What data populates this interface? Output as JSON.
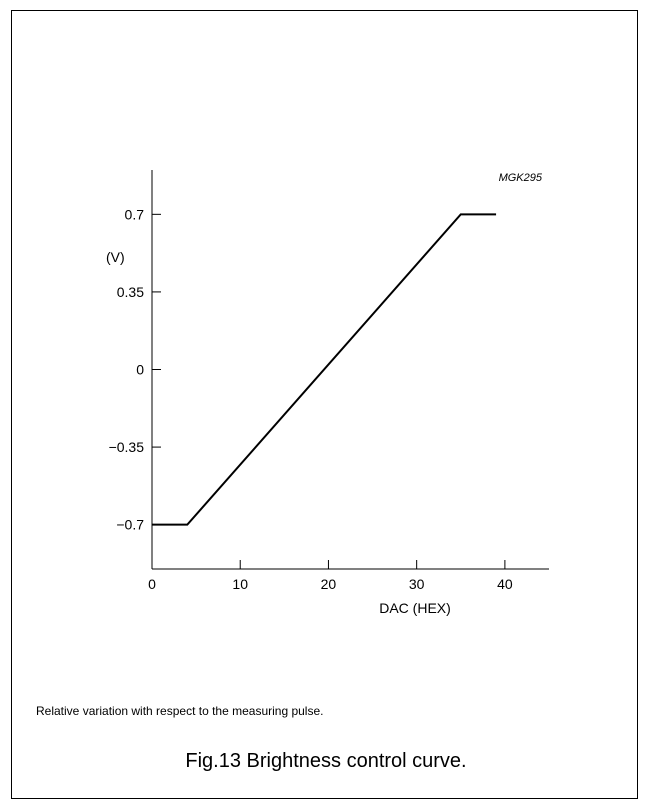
{
  "chart_data": {
    "type": "line",
    "code": "MGK295",
    "ylabel": "(V)",
    "xlabel": "DAC (HEX)",
    "xlim": [
      0,
      45
    ],
    "ylim": [
      -0.9,
      0.9
    ],
    "x_ticks": [
      0,
      10,
      20,
      30,
      40
    ],
    "x_tick_labels": [
      "0",
      "10",
      "20",
      "30",
      "40"
    ],
    "y_ticks": [
      0.7,
      0.35,
      0,
      -0.35,
      -0.7
    ],
    "y_tick_labels": [
      "0.7",
      "0.35",
      "0",
      "−0.35",
      "−0.7"
    ],
    "series": [
      {
        "x": [
          0,
          4,
          35,
          39
        ],
        "y": [
          -0.7,
          -0.7,
          0.7,
          0.7
        ]
      }
    ]
  },
  "note": "Relative variation with respect to the measuring pulse.",
  "caption": "Fig.13  Brightness control curve."
}
